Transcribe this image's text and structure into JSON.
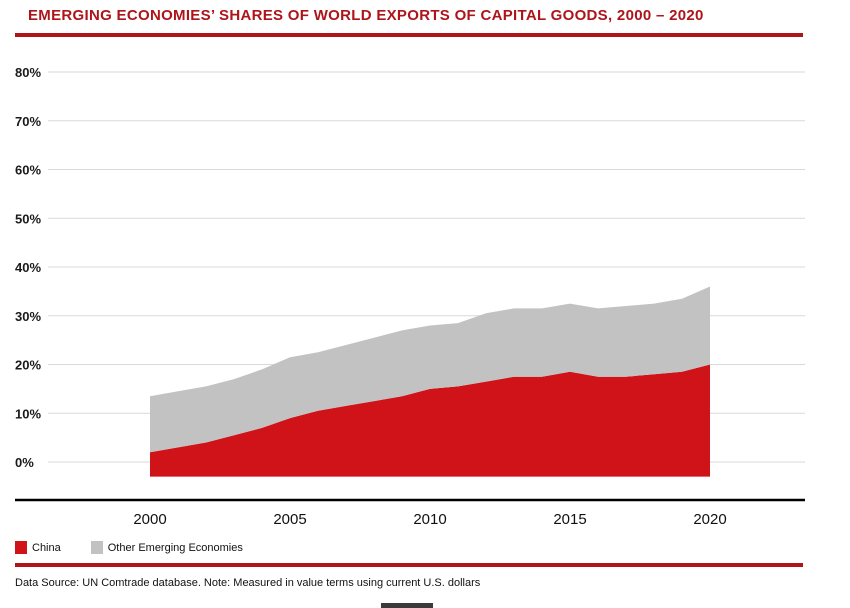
{
  "page": {
    "title": "EMERGING ECONOMIES’ SHARES OF WORLD EXPORTS OF CAPITAL GOODS, 2000 – 2020",
    "footnote": "Data Source: UN Comtrade database. Note: Measured in value terms using current U.S. dollars"
  },
  "colors": {
    "accent_red": "#ae1419",
    "china_red": "#d01319",
    "other_gray": "#c2c2c2",
    "gridline": "#d9d9d9",
    "axis": "#000000",
    "label_text": "#1a1a1a"
  },
  "chart_data": {
    "type": "area",
    "stacked": true,
    "title": "EMERGING ECONOMIES’ SHARES OF WORLD EXPORTS OF CAPITAL GOODS, 2000 – 2020",
    "x": [
      2000,
      2001,
      2002,
      2003,
      2004,
      2005,
      2006,
      2007,
      2008,
      2009,
      2010,
      2011,
      2012,
      2013,
      2014,
      2015,
      2016,
      2017,
      2018,
      2019,
      2020
    ],
    "series": [
      {
        "name": "China",
        "color": "#d01319",
        "values": [
          2,
          3,
          4,
          5.5,
          7,
          9,
          10.5,
          11.5,
          12.5,
          13.5,
          15,
          15.5,
          16.5,
          17.5,
          17.5,
          18.5,
          17.5,
          17.5,
          18,
          18.5,
          20
        ]
      },
      {
        "name": "Other Emerging Economies",
        "color": "#c2c2c2",
        "values": [
          11.5,
          11.5,
          11.5,
          11.5,
          12,
          12.5,
          12,
          12.5,
          13,
          13.5,
          13,
          13,
          14,
          14,
          14,
          14,
          14,
          14.5,
          14.5,
          15,
          16
        ]
      }
    ],
    "xticks": [
      2000,
      2005,
      2010,
      2015,
      2020
    ],
    "ylim": [
      0,
      80
    ],
    "ytick_step": 10,
    "ytick_suffix": "%",
    "grid": true,
    "legend_position": "bottom-left",
    "xlabel": "",
    "ylabel": ""
  }
}
